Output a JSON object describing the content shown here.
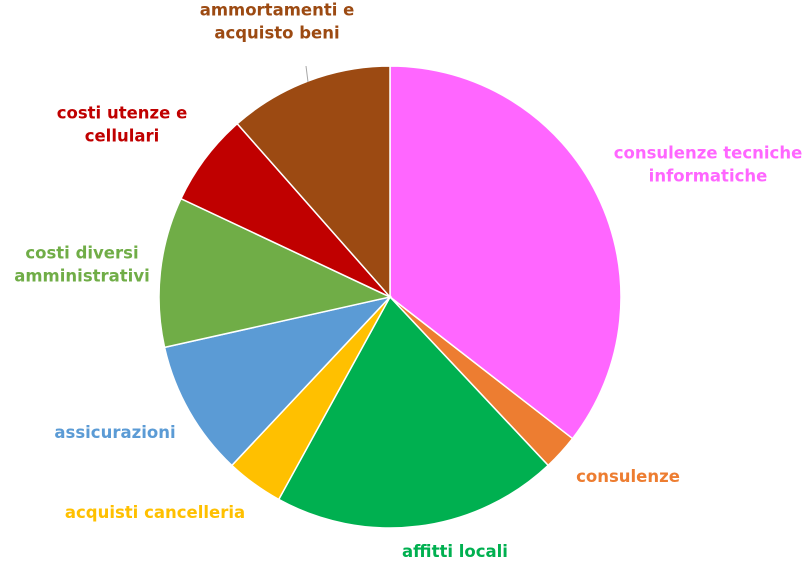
{
  "chart_data": {
    "type": "pie",
    "title": "",
    "start_angle_deg": 0,
    "direction": "clockwise",
    "slices": [
      {
        "label": "consulenze tecniche informatiche",
        "lines": [
          "consulenze tecniche",
          "informatiche"
        ],
        "value": 35.5,
        "color": "#ff66ff"
      },
      {
        "label": "consulenze",
        "lines": [
          "consulenze"
        ],
        "value": 2.5,
        "color": "#ed7d31"
      },
      {
        "label": "affitti locali",
        "lines": [
          "affitti locali"
        ],
        "value": 20.0,
        "color": "#00b050"
      },
      {
        "label": "acquisti cancelleria",
        "lines": [
          "acquisti cancelleria"
        ],
        "value": 4.0,
        "color": "#ffc000"
      },
      {
        "label": "assicurazioni",
        "lines": [
          "assicurazioni"
        ],
        "value": 9.5,
        "color": "#5b9bd5"
      },
      {
        "label": "costi diversi amministrativi",
        "lines": [
          "costi diversi",
          "amministrativi"
        ],
        "value": 10.5,
        "color": "#70ad47"
      },
      {
        "label": "costi utenze e cellulari",
        "lines": [
          "costi utenze e",
          "cellulari"
        ],
        "value": 6.5,
        "color": "#c00000"
      },
      {
        "label": "ammortamenti e acquisto beni",
        "lines": [
          "ammortamenti e",
          "acquisto beni"
        ],
        "value": 11.5,
        "color": "#9c4a12"
      }
    ]
  }
}
